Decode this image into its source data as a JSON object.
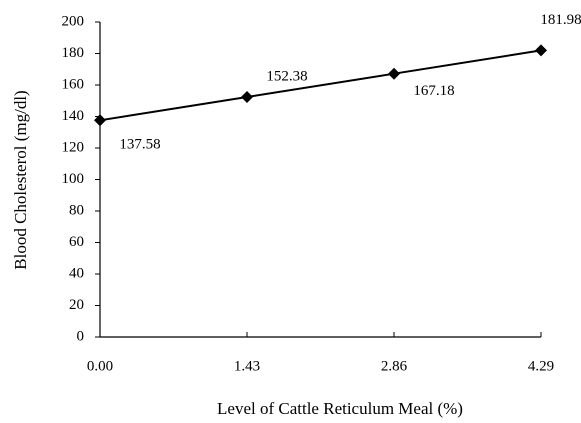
{
  "chart_data": {
    "type": "line",
    "x_label": "Level of Cattle Reticulum Meal (%)",
    "y_label": "Blood Cholesterol (mg/dl)",
    "x": [
      0,
      1.43,
      2.86,
      4.29
    ],
    "series": [
      {
        "name": "Blood Cholesterol",
        "color": "#000000",
        "values": [
          137.58,
          152.38,
          167.18,
          181.98
        ]
      }
    ],
    "xlim": [
      0,
      4.29
    ],
    "xticks": [
      {
        "value": 0,
        "label": "0.00"
      },
      1.43,
      2.86,
      4.29
    ],
    "ylim": [
      0,
      200
    ],
    "yticks": [
      0,
      20,
      40,
      60,
      80,
      100,
      120,
      140,
      160,
      180,
      200
    ],
    "grid": false
  }
}
